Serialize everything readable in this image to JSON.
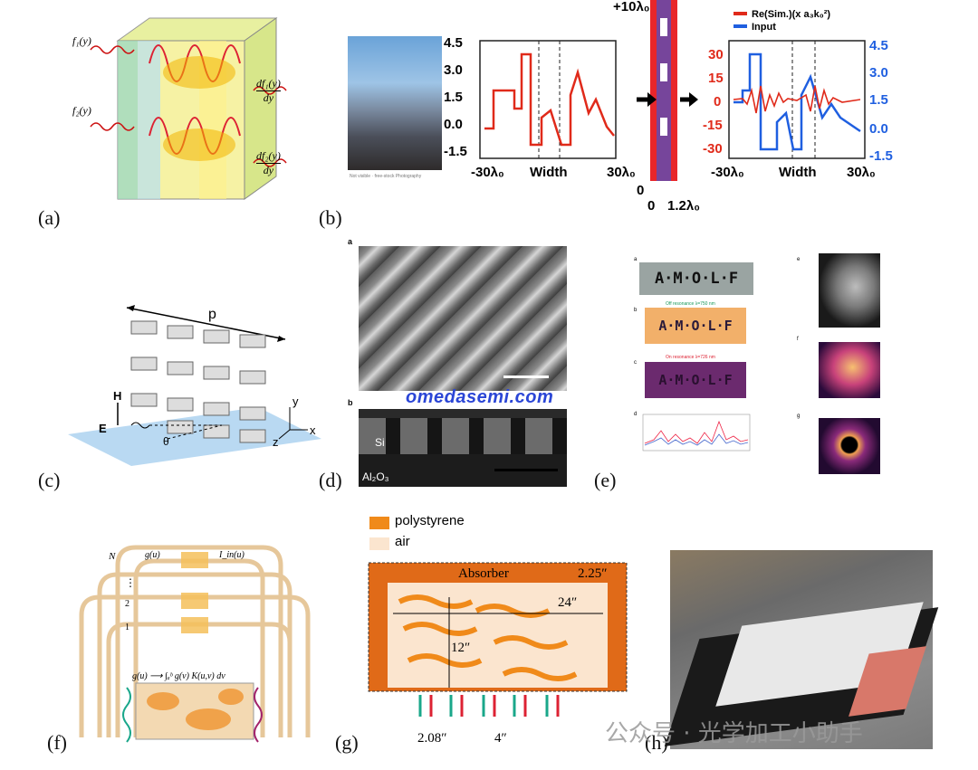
{
  "labels": {
    "a": "(a)",
    "b": "(b)",
    "c": "(c)",
    "d": "(d)",
    "e": "(e)",
    "f": "(f)",
    "g": "(g)",
    "h": "(h)"
  },
  "panel_a": {
    "f1": "f₁(y)",
    "f2": "f₂(y)",
    "df1_num": "df₁(y)",
    "df1_den": "dy",
    "df2_num": "df₂(y)",
    "df2_den": "dy"
  },
  "panel_b": {
    "caption_small": "Not visible · free-stock Photography",
    "left_plot": {
      "yticks": [
        "4.5",
        "3.0",
        "1.5",
        "0.0",
        "-1.5"
      ],
      "xleft": "-30λ₀",
      "xmid": "Width",
      "xright": "30λ₀"
    },
    "strip": {
      "top": "+10λ₀",
      "bottom_left": "0",
      "bottom_zero": "0",
      "bottom_right": "1.2λ₀"
    },
    "right_plot": {
      "legend_red": "Re(Sim.)(x a₃k₀²)",
      "legend_blue": "Input",
      "yleft": [
        "30",
        "15",
        "0",
        "-15",
        "-30"
      ],
      "yright": [
        "4.5",
        "3.0",
        "1.5",
        "0.0",
        "-1.5"
      ],
      "xleft": "-30λ₀",
      "xmid": "Width",
      "xright": "30λ₀"
    },
    "colors": {
      "red": "#e02a1a",
      "blue": "#1f5fe0"
    }
  },
  "panel_c": {
    "p": "p",
    "H": "H",
    "E": "E",
    "theta": "θ",
    "y": "y",
    "z": "z",
    "x": "x"
  },
  "panel_d": {
    "a": "a",
    "b": "b",
    "si": "Si",
    "al2o3": "Al₂O₃"
  },
  "watermark": "omedasemi.com",
  "panel_e": {
    "a": "a",
    "b": "b",
    "c": "c",
    "d": "d",
    "e": "e",
    "f": "f",
    "g": "g",
    "amolf": "A·M·O·L·F",
    "off": "Off resonance λ=750 nm",
    "on": "On resonance λ=726 nm"
  },
  "panel_f": {
    "N": "N",
    "gu_top": "g(u)",
    "in_top": "I_in(u)",
    "dots": "⋮",
    "two": "2",
    "one": "1",
    "integral": "g(u) ⟶ ∫ₐᵇ g(v) K(u,v) dv"
  },
  "panel_g": {
    "legend1": "polystyrene",
    "legend2": "air",
    "absorber": "Absorber",
    "d1": "2.25″",
    "d2": "24″",
    "d3": "12″",
    "d4": "2.08″",
    "d5": "4″"
  },
  "wechat_text": "公众号 · 光学加工小助手"
}
